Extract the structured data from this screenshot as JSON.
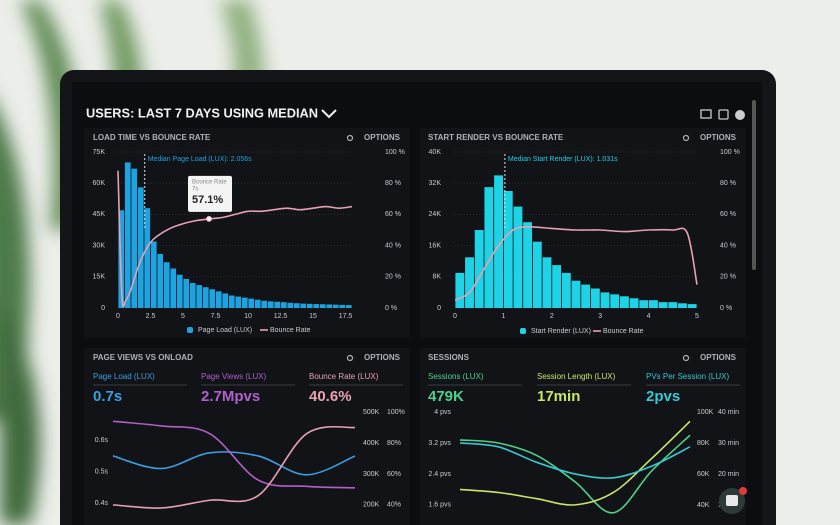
{
  "header": {
    "title": "USERS: LAST 7 DAYS USING MEDIAN"
  },
  "chart_data": [
    {
      "type": "histogram",
      "title": "LOAD TIME VS BOUNCE RATE",
      "options": "OPTIONS",
      "name": "Page Load (LUX)",
      "color": "#1fa3e0",
      "bins": [
        0,
        0.5,
        1,
        1.5,
        2,
        2.5,
        3,
        3.5,
        4,
        4.5,
        5,
        5.5,
        6,
        6.5,
        7,
        7.5,
        8,
        8.5,
        9,
        9.5,
        10,
        10.5,
        11,
        11.5,
        12,
        12.5,
        13,
        13.5,
        14,
        14.5,
        15,
        15.5,
        16,
        16.5,
        17,
        17.5,
        18
      ],
      "values": [
        47000,
        70000,
        67000,
        58000,
        48000,
        32000,
        26000,
        22000,
        19000,
        16000,
        14000,
        12000,
        11000,
        10000,
        9000,
        8000,
        7000,
        6000,
        5500,
        5000,
        4500,
        4000,
        3500,
        3200,
        3000,
        2800,
        2500,
        2300,
        2100,
        2000,
        1900,
        1800,
        1700,
        1600,
        1500,
        1400
      ],
      "xlim": [
        0,
        18
      ],
      "xticks": [
        0,
        2.5,
        5,
        7.5,
        10,
        12.5,
        15,
        17.5
      ],
      "ylim": [
        0,
        75000
      ],
      "yticks": [
        0,
        {
          "value": 15000,
          "label": "15K"
        },
        {
          "value": 30000,
          "label": "30K"
        },
        {
          "value": 45000,
          "label": "45K"
        },
        {
          "value": 60000,
          "label": "60K"
        },
        {
          "value": 75000,
          "label": "75K"
        }
      ],
      "y2lim": [
        0,
        100
      ],
      "y2ticks": [
        {
          "value": 0,
          "label": "0 %"
        },
        {
          "value": 20,
          "label": "20 %"
        },
        {
          "value": 40,
          "label": "40 %"
        },
        {
          "value": 60,
          "label": "60 %"
        },
        {
          "value": 80,
          "label": "80 %"
        },
        {
          "value": 100,
          "label": "100 %"
        }
      ],
      "grid": true,
      "line": {
        "name": "Bounce Rate",
        "color": "#e8a0b4",
        "axis": "y2",
        "x": [
          0,
          0.3,
          0.6,
          1,
          1.5,
          2,
          2.5,
          3,
          4,
          5,
          6,
          7,
          8,
          9,
          10,
          11,
          12,
          13,
          14,
          15,
          16,
          17,
          18
        ],
        "values": [
          88,
          8,
          5,
          12,
          25,
          35,
          42,
          46,
          51,
          54,
          56,
          57.1,
          58,
          60,
          62,
          62,
          63,
          64,
          63,
          64,
          65,
          64,
          65
        ]
      },
      "median": 2.056,
      "annotation": "Median Page Load (LUX): 2.056s",
      "tooltip": {
        "title": "Bounce Rate",
        "x_label": "7s",
        "value": "57.1%"
      }
    },
    {
      "type": "histogram",
      "title": "START RENDER VS BOUNCE RATE",
      "options": "OPTIONS",
      "name": "Start Render (LUX)",
      "color": "#1fd3e6",
      "bins": [
        0,
        0.2,
        0.4,
        0.6,
        0.8,
        1,
        1.2,
        1.4,
        1.6,
        1.8,
        2,
        2.2,
        2.4,
        2.6,
        2.8,
        3,
        3.2,
        3.4,
        3.6,
        3.8,
        4,
        4.2,
        4.4,
        4.6,
        4.8,
        5
      ],
      "values": [
        9000,
        13000,
        20000,
        31000,
        34000,
        30000,
        26000,
        22000,
        17000,
        13000,
        11000,
        9000,
        7000,
        6000,
        5000,
        4000,
        3500,
        3000,
        2500,
        2000,
        2000,
        1500,
        1500,
        1200,
        1000
      ],
      "xlim": [
        0,
        5
      ],
      "xticks": [
        0,
        1,
        2,
        3,
        4,
        5
      ],
      "ylim": [
        0,
        40000
      ],
      "yticks": [
        0,
        {
          "value": 8000,
          "label": "8K"
        },
        {
          "value": 16000,
          "label": "16K"
        },
        {
          "value": 24000,
          "label": "24K"
        },
        {
          "value": 32000,
          "label": "32K"
        },
        {
          "value": 40000,
          "label": "40K"
        }
      ],
      "y2lim": [
        0,
        100
      ],
      "y2ticks": [
        {
          "value": 0,
          "label": "0 %"
        },
        {
          "value": 20,
          "label": "20 %"
        },
        {
          "value": 40,
          "label": "40 %"
        },
        {
          "value": 60,
          "label": "60 %"
        },
        {
          "value": 80,
          "label": "80 %"
        },
        {
          "value": 100,
          "label": "100 %"
        }
      ],
      "grid": true,
      "line": {
        "name": "Bounce Rate",
        "color": "#e8a0b4",
        "axis": "y2",
        "x": [
          0,
          0.3,
          0.6,
          0.9,
          1.2,
          1.5,
          2,
          2.5,
          3,
          3.5,
          4,
          4.5,
          4.8,
          5
        ],
        "values": [
          5,
          10,
          25,
          40,
          50,
          52,
          51,
          50,
          50,
          49,
          50,
          50,
          48,
          15
        ]
      },
      "median": 1.031,
      "annotation": "Median Start Render (LUX): 1.031s"
    },
    {
      "type": "line",
      "title": "PAGE VIEWS VS ONLOAD",
      "options": "OPTIONS",
      "kpis": [
        {
          "label": "Page Load (LUX)",
          "value": "0.7s",
          "color": "#3b9fe0"
        },
        {
          "label": "Page Views (LUX)",
          "value": "2.7Mpvs",
          "color": "#b061c9"
        },
        {
          "label": "Bounce Rate (LUX)",
          "value": "40.6%",
          "color": "#e8a0b4"
        }
      ],
      "categories": [
        null,
        null,
        null,
        null,
        null,
        null
      ],
      "ylim": [
        0.33,
        0.69
      ],
      "yticks": [
        {
          "value": 0.4,
          "label": "0.4s"
        },
        {
          "value": 0.5,
          "label": "0.5s"
        },
        {
          "value": 0.6,
          "label": "0.6s"
        }
      ],
      "y2lim": [
        135000,
        500000
      ],
      "y2ticks": [
        {
          "value": 200000,
          "label": "200K"
        },
        {
          "value": 300000,
          "label": "300K"
        },
        {
          "value": 400000,
          "label": "400K"
        },
        {
          "value": 500000,
          "label": "500K"
        }
      ],
      "y3lim": [
        27,
        100
      ],
      "y3ticks": [
        {
          "value": 40,
          "label": "40%"
        },
        {
          "value": 60,
          "label": "60%"
        },
        {
          "value": 80,
          "label": "80%"
        },
        {
          "value": 100,
          "label": "100%"
        }
      ],
      "series": [
        {
          "color": "#3b9fe0",
          "axis": "y",
          "values": [
            0.55,
            0.51,
            0.56,
            0.55,
            0.49,
            0.55
          ]
        },
        {
          "color": "#b061c9",
          "axis": "y2",
          "values": [
            470000,
            455000,
            430000,
            280000,
            260000,
            255000
          ]
        },
        {
          "color": "#e8a0b4",
          "axis": "y3",
          "values": [
            40,
            38,
            43,
            46,
            86,
            90
          ]
        }
      ]
    },
    {
      "type": "line",
      "title": "SESSIONS",
      "options": "OPTIONS",
      "kpis": [
        {
          "label": "Sessions (LUX)",
          "value": "479K",
          "color": "#4fd08a"
        },
        {
          "label": "Session Length (LUX)",
          "value": "17min",
          "color": "#c8e86a"
        },
        {
          "label": "PVs Per Session (LUX)",
          "value": "2pvs",
          "color": "#37c8d0"
        }
      ],
      "categories": [
        null,
        null,
        null,
        null,
        null,
        null,
        null
      ],
      "ylim": [
        1.08,
        4
      ],
      "yticks": [
        {
          "value": 1.6,
          "label": "1.6 pvs"
        },
        {
          "value": 2.4,
          "label": "2.4 pvs"
        },
        {
          "value": 3.2,
          "label": "3.2 pvs"
        },
        {
          "value": 4,
          "label": "4 pvs"
        }
      ],
      "y2lim": [
        27100,
        100000
      ],
      "y2ticks": [
        {
          "value": 40000,
          "label": "40K"
        },
        {
          "value": 60000,
          "label": "60K"
        },
        {
          "value": 80000,
          "label": "80K"
        },
        {
          "value": 100000,
          "label": "100K"
        }
      ],
      "y3lim": [
        3.5,
        40
      ],
      "y3ticks": [
        {
          "value": 10,
          "label": "10 min"
        },
        {
          "value": 20,
          "label": "20 min"
        },
        {
          "value": 30,
          "label": "30 min"
        },
        {
          "value": 40,
          "label": "40 min"
        }
      ],
      "series": [
        {
          "color": "#4fd08a",
          "axis": "y2",
          "values": [
            82000,
            80000,
            72000,
            55000,
            35000,
            62000,
            85000
          ]
        },
        {
          "color": "#c8e86a",
          "axis": "y3",
          "values": [
            15,
            14,
            12,
            10,
            14,
            25,
            37
          ]
        },
        {
          "color": "#37c8d0",
          "axis": "y",
          "values": [
            3.2,
            3.1,
            2.7,
            2.4,
            2.3,
            2.6,
            3.1
          ]
        }
      ]
    }
  ]
}
